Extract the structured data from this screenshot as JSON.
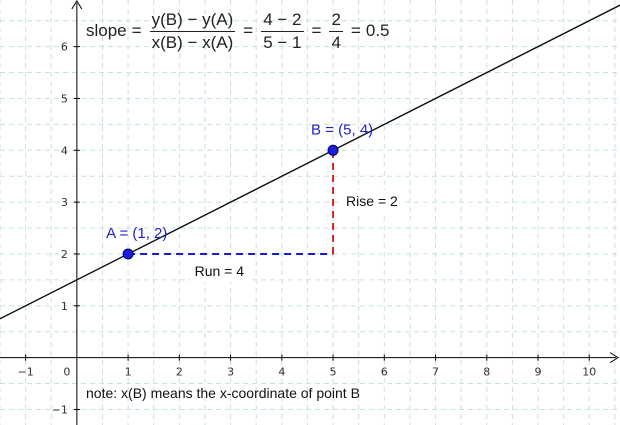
{
  "formula": {
    "lead": "slope",
    "eq1": "=",
    "frac1_num": "y(B) − y(A)",
    "frac1_den": "x(B) − x(A)",
    "eq2": "=",
    "frac2_num": "4 − 2",
    "frac2_den": "5 − 1",
    "eq3": "=",
    "frac3_num": "2",
    "frac3_den": "4",
    "eq4": "=",
    "result": "0.5"
  },
  "note": "note: x(B) means the x-coordinate of point B",
  "chart_data": {
    "type": "scatter",
    "x_ticks": [
      "−1",
      "0",
      "1",
      "2",
      "3",
      "4",
      "5",
      "6",
      "7",
      "8",
      "9",
      "10"
    ],
    "y_ticks": [
      "−1",
      "1",
      "2",
      "3",
      "4",
      "5",
      "6"
    ],
    "xlim": [
      -1.5,
      10.6
    ],
    "ylim": [
      -1.3,
      6.9
    ],
    "grid": true,
    "points": [
      {
        "label": "A = (1, 2)",
        "x": 1,
        "y": 2
      },
      {
        "label": "B = (5, 4)",
        "x": 5,
        "y": 4
      }
    ],
    "line": {
      "slope": 0.5,
      "intercept": 1.5
    },
    "run_label": "Run = 4",
    "rise_label": "Rise = 2",
    "run_segment": {
      "from": [
        1,
        2
      ],
      "to": [
        5,
        2
      ]
    },
    "rise_segment": {
      "from": [
        5,
        2
      ],
      "to": [
        5,
        4
      ]
    }
  },
  "colors": {
    "point": "#1c1cdd",
    "point_label": "#2222cc",
    "run": "#1a1ad6",
    "rise": "#dd2222",
    "grid": "#c6e4da",
    "axis": "#000000",
    "line": "#111111"
  }
}
